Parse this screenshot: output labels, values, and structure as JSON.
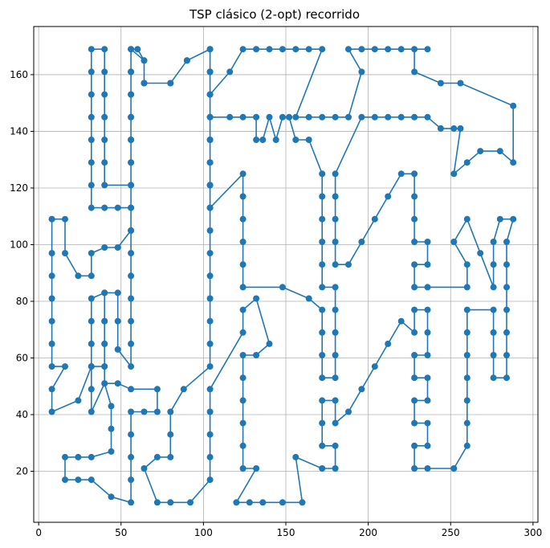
{
  "chart_data": {
    "type": "line",
    "title": "TSP clásico (2-opt) recorrido",
    "xlabel": "",
    "ylabel": "",
    "xlim": [
      -3,
      303
    ],
    "ylim": [
      2,
      177
    ],
    "x_ticks": [
      0,
      50,
      100,
      150,
      200,
      250,
      300
    ],
    "y_ticks": [
      20,
      40,
      60,
      80,
      100,
      120,
      140,
      160
    ],
    "grid": true,
    "color": "#1f77b4",
    "markers": "circle",
    "closed_path": true,
    "series": [
      {
        "points": [
          [
            8,
            109
          ],
          [
            16,
            109
          ],
          [
            16,
            97
          ],
          [
            24,
            89
          ],
          [
            32,
            89
          ],
          [
            32,
            97
          ],
          [
            40,
            99
          ],
          [
            48,
            99
          ],
          [
            56,
            105
          ],
          [
            56,
            113
          ],
          [
            48,
            113
          ],
          [
            40,
            113
          ],
          [
            32,
            113
          ],
          [
            32,
            121
          ],
          [
            32,
            129
          ],
          [
            32,
            137
          ],
          [
            32,
            145
          ],
          [
            32,
            153
          ],
          [
            32,
            161
          ],
          [
            32,
            169
          ],
          [
            40,
            169
          ],
          [
            40,
            161
          ],
          [
            40,
            153
          ],
          [
            40,
            145
          ],
          [
            40,
            137
          ],
          [
            40,
            129
          ],
          [
            40,
            121
          ],
          [
            56,
            121
          ],
          [
            56,
            129
          ],
          [
            56,
            137
          ],
          [
            56,
            145
          ],
          [
            56,
            153
          ],
          [
            56,
            161
          ],
          [
            56,
            169
          ],
          [
            60,
            169
          ],
          [
            64,
            165
          ],
          [
            64,
            157
          ],
          [
            80,
            157
          ],
          [
            90,
            165
          ],
          [
            104,
            169
          ],
          [
            104,
            161
          ],
          [
            104,
            153
          ],
          [
            104,
            145
          ],
          [
            104,
            137
          ],
          [
            104,
            129
          ],
          [
            104,
            121
          ],
          [
            104,
            113
          ],
          [
            124,
            125
          ],
          [
            124,
            117
          ],
          [
            124,
            109
          ],
          [
            124,
            101
          ],
          [
            124,
            93
          ],
          [
            124,
            85
          ],
          [
            148,
            85
          ],
          [
            164,
            81
          ],
          [
            172,
            77
          ],
          [
            172,
            69
          ],
          [
            172,
            61
          ],
          [
            172,
            53
          ],
          [
            180,
            53
          ],
          [
            180,
            61
          ],
          [
            180,
            69
          ],
          [
            180,
            77
          ],
          [
            180,
            85
          ],
          [
            172,
            85
          ],
          [
            172,
            93
          ],
          [
            172,
            101
          ],
          [
            172,
            109
          ],
          [
            172,
            117
          ],
          [
            172,
            125
          ],
          [
            164,
            137
          ],
          [
            156,
            137
          ],
          [
            152,
            145
          ],
          [
            148,
            145
          ],
          [
            144,
            137
          ],
          [
            140,
            145
          ],
          [
            136,
            137
          ],
          [
            132,
            137
          ],
          [
            132,
            145
          ],
          [
            124,
            145
          ],
          [
            116,
            145
          ],
          [
            104,
            145
          ],
          [
            104,
            137
          ],
          [
            104,
            129
          ],
          [
            104,
            121
          ],
          [
            104,
            113
          ],
          [
            104,
            105
          ],
          [
            104,
            97
          ],
          [
            104,
            89
          ],
          [
            104,
            81
          ],
          [
            104,
            73
          ],
          [
            104,
            65
          ],
          [
            104,
            57
          ],
          [
            88,
            49
          ],
          [
            80,
            41
          ],
          [
            80,
            33
          ],
          [
            80,
            25
          ],
          [
            72,
            25
          ],
          [
            64,
            21
          ],
          [
            72,
            9
          ],
          [
            80,
            9
          ],
          [
            92,
            9
          ],
          [
            104,
            17
          ],
          [
            104,
            25
          ],
          [
            104,
            33
          ],
          [
            104,
            41
          ],
          [
            104,
            49
          ],
          [
            124,
            69
          ],
          [
            124,
            77
          ],
          [
            132,
            81
          ],
          [
            140,
            65
          ],
          [
            132,
            61
          ],
          [
            124,
            61
          ],
          [
            124,
            53
          ],
          [
            124,
            45
          ],
          [
            124,
            37
          ],
          [
            124,
            29
          ],
          [
            124,
            21
          ],
          [
            132,
            21
          ],
          [
            120,
            9
          ],
          [
            128,
            9
          ],
          [
            136,
            9
          ],
          [
            148,
            9
          ],
          [
            160,
            9
          ],
          [
            156,
            25
          ],
          [
            172,
            21
          ],
          [
            180,
            21
          ],
          [
            180,
            29
          ],
          [
            172,
            29
          ],
          [
            172,
            37
          ],
          [
            172,
            45
          ],
          [
            180,
            45
          ],
          [
            180,
            37
          ],
          [
            188,
            41
          ],
          [
            196,
            49
          ],
          [
            204,
            57
          ],
          [
            212,
            65
          ],
          [
            220,
            73
          ],
          [
            228,
            69
          ],
          [
            228,
            77
          ],
          [
            236,
            77
          ],
          [
            236,
            69
          ],
          [
            236,
            61
          ],
          [
            228,
            61
          ],
          [
            228,
            53
          ],
          [
            236,
            53
          ],
          [
            236,
            45
          ],
          [
            228,
            45
          ],
          [
            228,
            37
          ],
          [
            236,
            37
          ],
          [
            236,
            29
          ],
          [
            228,
            29
          ],
          [
            228,
            21
          ],
          [
            236,
            21
          ],
          [
            252,
            21
          ],
          [
            260,
            29
          ],
          [
            260,
            37
          ],
          [
            260,
            45
          ],
          [
            260,
            53
          ],
          [
            260,
            61
          ],
          [
            260,
            69
          ],
          [
            260,
            77
          ],
          [
            276,
            77
          ],
          [
            276,
            69
          ],
          [
            276,
            61
          ],
          [
            276,
            53
          ],
          [
            284,
            53
          ],
          [
            284,
            61
          ],
          [
            284,
            69
          ],
          [
            284,
            77
          ],
          [
            284,
            85
          ],
          [
            284,
            93
          ],
          [
            284,
            101
          ],
          [
            288,
            109
          ],
          [
            280,
            109
          ],
          [
            276,
            101
          ],
          [
            276,
            93
          ],
          [
            276,
            85
          ],
          [
            268,
            97
          ],
          [
            260,
            109
          ],
          [
            252,
            101
          ],
          [
            260,
            93
          ],
          [
            260,
            85
          ],
          [
            236,
            85
          ],
          [
            228,
            85
          ],
          [
            228,
            93
          ],
          [
            236,
            93
          ],
          [
            236,
            101
          ],
          [
            228,
            101
          ],
          [
            228,
            109
          ],
          [
            228,
            117
          ],
          [
            228,
            125
          ],
          [
            220,
            125
          ],
          [
            212,
            117
          ],
          [
            204,
            109
          ],
          [
            196,
            101
          ],
          [
            188,
            93
          ],
          [
            180,
            93
          ],
          [
            180,
            101
          ],
          [
            180,
            109
          ],
          [
            180,
            117
          ],
          [
            180,
            125
          ],
          [
            196,
            145
          ],
          [
            204,
            145
          ],
          [
            212,
            145
          ],
          [
            220,
            145
          ],
          [
            228,
            145
          ],
          [
            236,
            145
          ],
          [
            244,
            141
          ],
          [
            252,
            141
          ],
          [
            256,
            141
          ],
          [
            252,
            125
          ],
          [
            260,
            129
          ],
          [
            268,
            133
          ],
          [
            280,
            133
          ],
          [
            288,
            129
          ],
          [
            288,
            149
          ],
          [
            256,
            157
          ],
          [
            244,
            157
          ],
          [
            228,
            161
          ],
          [
            228,
            169
          ],
          [
            236,
            169
          ],
          [
            220,
            169
          ],
          [
            212,
            169
          ],
          [
            204,
            169
          ],
          [
            196,
            169
          ],
          [
            188,
            169
          ],
          [
            196,
            161
          ],
          [
            188,
            145
          ],
          [
            180,
            145
          ],
          [
            172,
            145
          ],
          [
            164,
            145
          ],
          [
            156,
            145
          ],
          [
            172,
            169
          ],
          [
            164,
            169
          ],
          [
            156,
            169
          ],
          [
            148,
            169
          ],
          [
            140,
            169
          ],
          [
            132,
            169
          ],
          [
            124,
            169
          ],
          [
            116,
            161
          ],
          [
            104,
            153
          ],
          [
            104,
            161
          ],
          [
            104,
            169
          ],
          [
            90,
            165
          ],
          [
            80,
            157
          ],
          [
            64,
            157
          ],
          [
            64,
            165
          ],
          [
            56,
            169
          ],
          [
            56,
            161
          ],
          [
            56,
            153
          ],
          [
            56,
            145
          ],
          [
            56,
            137
          ],
          [
            56,
            129
          ],
          [
            56,
            121
          ],
          [
            56,
            113
          ],
          [
            56,
            105
          ],
          [
            56,
            97
          ],
          [
            56,
            89
          ],
          [
            56,
            81
          ],
          [
            56,
            73
          ],
          [
            56,
            65
          ],
          [
            56,
            57
          ],
          [
            48,
            63
          ],
          [
            48,
            73
          ],
          [
            48,
            83
          ],
          [
            40,
            83
          ],
          [
            40,
            73
          ],
          [
            40,
            65
          ],
          [
            40,
            57
          ],
          [
            40,
            51
          ],
          [
            48,
            51
          ],
          [
            56,
            49
          ],
          [
            72,
            49
          ],
          [
            72,
            41
          ],
          [
            64,
            41
          ],
          [
            56,
            41
          ],
          [
            56,
            33
          ],
          [
            56,
            25
          ],
          [
            56,
            17
          ],
          [
            56,
            9
          ],
          [
            44,
            11
          ],
          [
            32,
            17
          ],
          [
            24,
            17
          ],
          [
            16,
            17
          ],
          [
            16,
            25
          ],
          [
            24,
            25
          ],
          [
            32,
            25
          ],
          [
            44,
            27
          ],
          [
            44,
            35
          ],
          [
            44,
            43
          ],
          [
            40,
            51
          ],
          [
            32,
            41
          ],
          [
            32,
            49
          ],
          [
            32,
            57
          ],
          [
            32,
            65
          ],
          [
            32,
            73
          ],
          [
            32,
            81
          ],
          [
            40,
            83
          ],
          [
            40,
            73
          ],
          [
            40,
            65
          ],
          [
            40,
            57
          ],
          [
            32,
            57
          ],
          [
            24,
            45
          ],
          [
            8,
            41
          ],
          [
            8,
            49
          ],
          [
            16,
            57
          ],
          [
            8,
            57
          ],
          [
            8,
            65
          ],
          [
            8,
            73
          ],
          [
            8,
            81
          ],
          [
            8,
            89
          ],
          [
            8,
            97
          ],
          [
            8,
            109
          ]
        ]
      }
    ]
  }
}
